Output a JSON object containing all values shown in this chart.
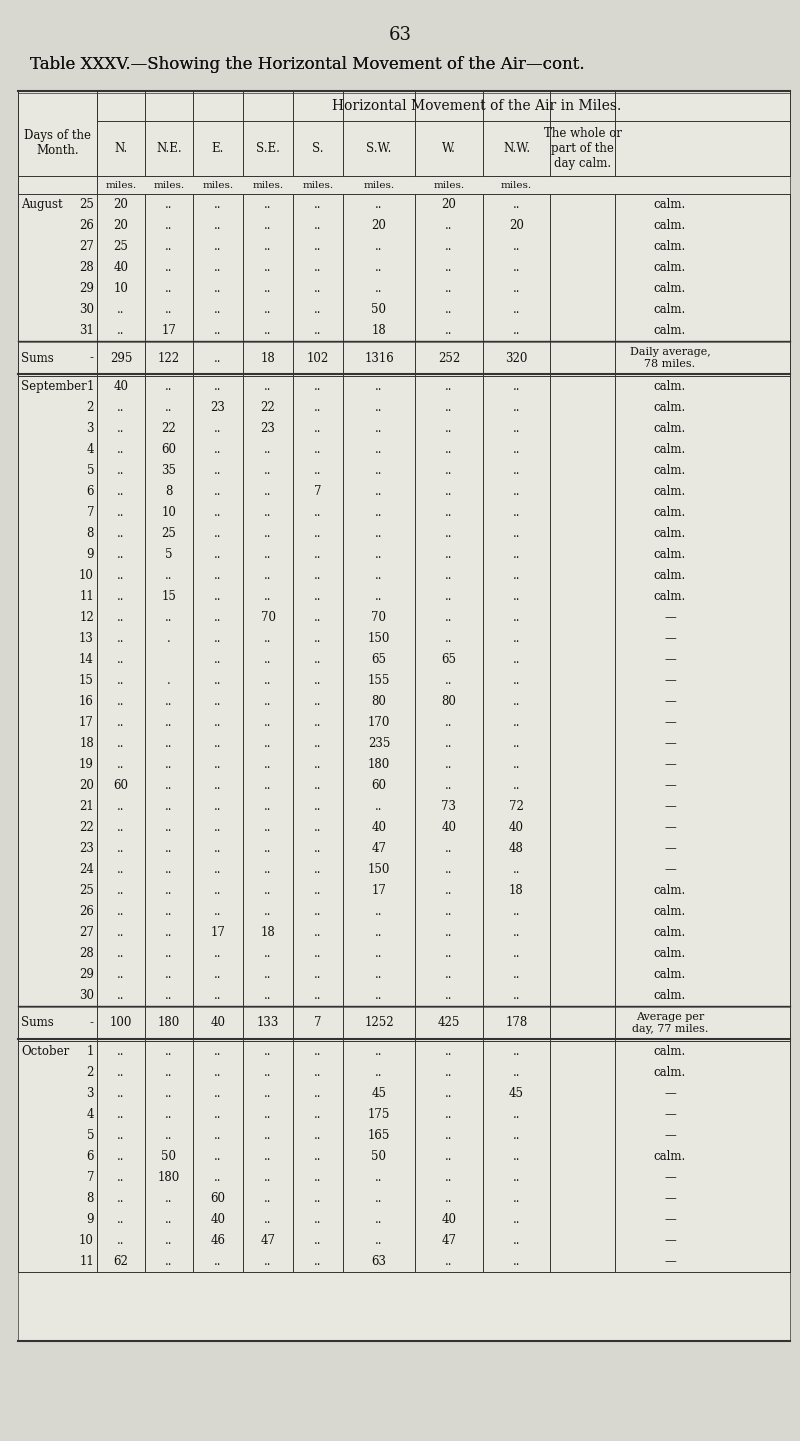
{
  "page_number": "63",
  "title": "Table XXXV.—Showing the Horizontal Movement of the Air—cont.",
  "subtitle": "Horizontal Movement of the Air in Miles.",
  "col_headers": [
    "N.",
    "N.E.",
    "E.",
    "S.E.",
    "S.",
    "S.W.",
    "W.",
    "N.W.",
    "The whole or\npart of the\nday calm."
  ],
  "units_row": [
    "miles.",
    "miles.",
    "miles.",
    "miles.",
    "miles.",
    "miles.",
    "miles.",
    "miles.",
    ""
  ],
  "sections": [
    {
      "month": "August",
      "rows": [
        [
          "25",
          "20",
          "..",
          "..",
          "..",
          "..",
          "..",
          "20",
          "..",
          "calm."
        ],
        [
          "26",
          "20",
          "..",
          "..",
          "..",
          "..",
          "20",
          "..",
          "20",
          "calm."
        ],
        [
          "27",
          "25",
          "..",
          "..",
          "..",
          "..",
          "..",
          "..",
          "..",
          "calm."
        ],
        [
          "28",
          "40",
          "..",
          "..",
          "..",
          "..",
          "..",
          "..",
          "..",
          "calm."
        ],
        [
          "29",
          "10",
          "..",
          "..",
          "..",
          "..",
          "..",
          "..",
          "..",
          "calm."
        ],
        [
          "30",
          "..",
          "..",
          "..",
          "..",
          "..",
          "50",
          "..",
          "..",
          "calm."
        ],
        [
          "31",
          "..",
          "17",
          "..",
          "..",
          "..",
          "18",
          "..",
          "..",
          "calm."
        ]
      ],
      "sums_row": [
        "Sums",
        "-",
        "295",
        "122",
        "..",
        "18",
        "102",
        "1316",
        "252",
        "320",
        "Daily average,\n78 miles."
      ]
    },
    {
      "month": "September",
      "rows": [
        [
          "1",
          "40",
          "..",
          "..",
          "..",
          "..",
          "..",
          "..",
          "..",
          "calm."
        ],
        [
          "2",
          "..",
          "..",
          "23",
          "22",
          "..",
          "..",
          "..",
          "..",
          "calm."
        ],
        [
          "3",
          "..",
          "22",
          "..",
          "23",
          "..",
          "..",
          "..",
          "..",
          "calm."
        ],
        [
          "4",
          "..",
          "60",
          "..",
          "..",
          "..",
          "..",
          "..",
          "..",
          "calm."
        ],
        [
          "5",
          "..",
          "35",
          "..",
          "..",
          "..",
          "..",
          "..",
          "..",
          "calm."
        ],
        [
          "6",
          "..",
          "8",
          "..",
          "..",
          "7",
          "..",
          "..",
          "..",
          "calm."
        ],
        [
          "7",
          "..",
          "10",
          "..",
          "..",
          "..",
          "..",
          "..",
          "..",
          "calm."
        ],
        [
          "8",
          "..",
          "25",
          "..",
          "..",
          "..",
          "..",
          "..",
          "..",
          "calm."
        ],
        [
          "9",
          "..",
          "5",
          "..",
          "..",
          "..",
          "..",
          "..",
          "..",
          "calm."
        ],
        [
          "10",
          "..",
          "..",
          "..",
          "..",
          "..",
          "..",
          "..",
          "..",
          "calm."
        ],
        [
          "11",
          "..",
          "15",
          "..",
          "..",
          "..",
          "..",
          "..",
          "..",
          "calm."
        ],
        [
          "12",
          "..",
          "..",
          "..",
          "70",
          "..",
          "70",
          "..",
          "..",
          "—"
        ],
        [
          "13",
          "..",
          ".",
          "..",
          "..",
          "..",
          "150",
          "..",
          "..",
          "—"
        ],
        [
          "14",
          "..",
          "",
          "..",
          "..",
          "..",
          "65",
          "65",
          "..",
          "—"
        ],
        [
          "15",
          "..",
          ".",
          "..",
          "..",
          "..",
          "155",
          "..",
          "..",
          "—"
        ],
        [
          "16",
          "..",
          "..",
          "..",
          "..",
          "..",
          "80",
          "80",
          "..",
          "—"
        ],
        [
          "17",
          "..",
          "..",
          "..",
          "..",
          "..",
          "170",
          "..",
          "..",
          "—"
        ],
        [
          "18",
          "..",
          "..",
          "..",
          "..",
          "..",
          "235",
          "..",
          "..",
          "—"
        ],
        [
          "19",
          "..",
          "..",
          "..",
          "..",
          "..",
          "180",
          "..",
          "..",
          "—"
        ],
        [
          "20",
          "60",
          "..",
          "..",
          "..",
          "..",
          "60",
          "..",
          "..",
          "—"
        ],
        [
          "21",
          "..",
          "..",
          "..",
          "..",
          "..",
          "..",
          "73",
          "72",
          "—"
        ],
        [
          "22",
          "..",
          "..",
          "..",
          "..",
          "..",
          "40",
          "40",
          "40",
          "—"
        ],
        [
          "23",
          "..",
          "..",
          "..",
          "..",
          "..",
          "47",
          "..",
          "48",
          "—"
        ],
        [
          "24",
          "..",
          "..",
          "..",
          "..",
          "..",
          "150",
          "..",
          "..",
          "—"
        ],
        [
          "25",
          "..",
          "..",
          "..",
          "..",
          "..",
          "17",
          "..",
          "18",
          "calm."
        ],
        [
          "26",
          "..",
          "..",
          "..",
          "..",
          "..",
          "..",
          "..",
          "..",
          "calm."
        ],
        [
          "27",
          "..",
          "..",
          "17",
          "18",
          "..",
          "..",
          "..",
          "..",
          "calm."
        ],
        [
          "28",
          "..",
          "..",
          "..",
          "..",
          "..",
          "..",
          "..",
          "..",
          "calm."
        ],
        [
          "29",
          "..",
          "..",
          "..",
          "..",
          "..",
          "..",
          "..",
          "..",
          "calm."
        ],
        [
          "30",
          "..",
          "..",
          "..",
          "..",
          "..",
          "..",
          "..",
          "..",
          "calm."
        ]
      ],
      "sums_row": [
        "Sums",
        "-",
        "100",
        "180",
        "40",
        "133",
        "7",
        "1252",
        "425",
        "178",
        "Average per\nday, 77 miles."
      ]
    },
    {
      "month": "October",
      "rows": [
        [
          "1",
          "..",
          "..",
          "..",
          "..",
          "..",
          "..",
          "..",
          "..",
          "calm."
        ],
        [
          "2",
          "..",
          "..",
          "..",
          "..",
          "..",
          "..",
          "..",
          "..",
          "calm."
        ],
        [
          "3",
          "..",
          "..",
          "..",
          "..",
          "..",
          "45",
          "..",
          "45",
          "—"
        ],
        [
          "4",
          "..",
          "..",
          "..",
          "..",
          "..",
          "175",
          "..",
          "..",
          "—"
        ],
        [
          "5",
          "..",
          "..",
          "..",
          "..",
          "..",
          "165",
          "..",
          "..",
          "—"
        ],
        [
          "6",
          "..",
          "50",
          "..",
          "..",
          "..",
          "50",
          "..",
          "..",
          "calm."
        ],
        [
          "7",
          "..",
          "180",
          "..",
          "..",
          "..",
          "..",
          "..",
          "..",
          "—"
        ],
        [
          "8",
          "..",
          "..",
          "60",
          "..",
          "..",
          "..",
          "..",
          "..",
          "—"
        ],
        [
          "9",
          "..",
          "..",
          "40",
          "..",
          "..",
          "..",
          "40",
          "..",
          "—"
        ],
        [
          "10",
          "..",
          "..",
          "46",
          "47",
          "..",
          "..",
          "47",
          "..",
          "—"
        ],
        [
          "11",
          "62",
          "..",
          "..",
          "..",
          "..",
          "63",
          "..",
          "..",
          "—"
        ]
      ],
      "sums_row": null
    }
  ],
  "bg_color": "#d8d8d0",
  "table_bg": "#e8e8e0",
  "line_color": "#333333",
  "text_color": "#111111"
}
